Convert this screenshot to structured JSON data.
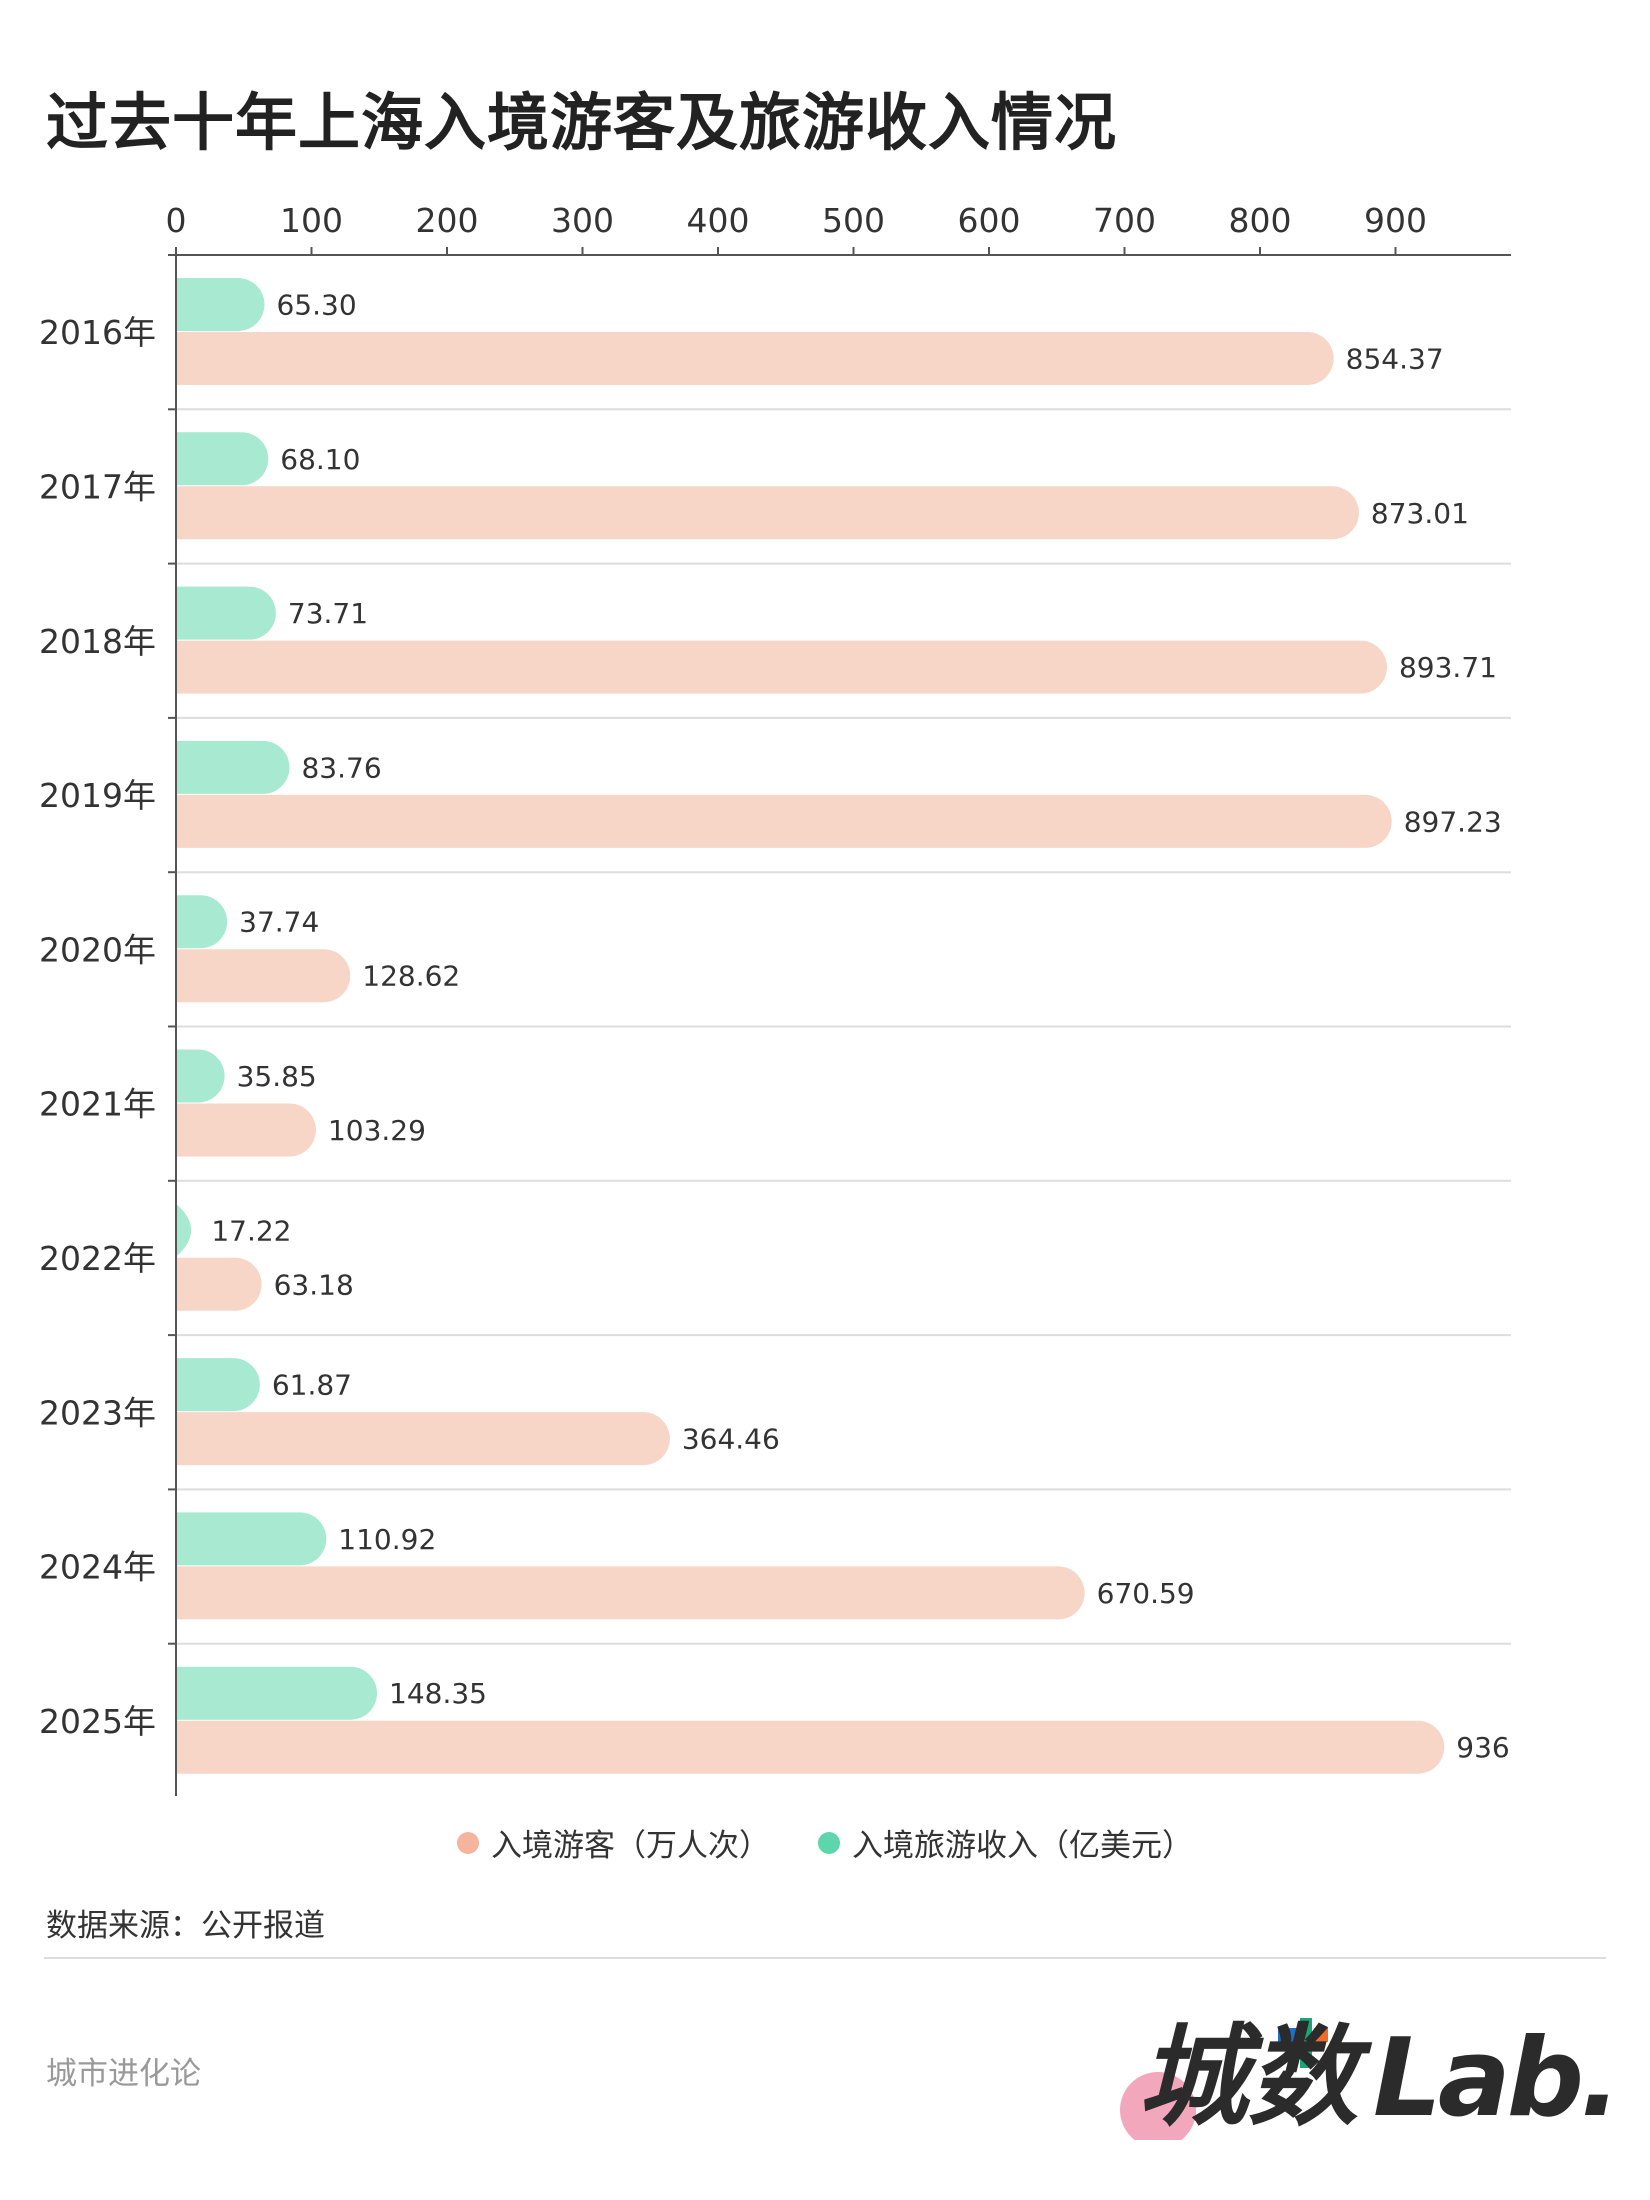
{
  "title": "过去十年上海入境游客及旅游收入情况",
  "chart_data": {
    "type": "bar",
    "orientation": "horizontal",
    "categories": [
      "2016年",
      "2017年",
      "2018年",
      "2019年",
      "2020年",
      "2021年",
      "2022年",
      "2023年",
      "2024年",
      "2025年"
    ],
    "series": [
      {
        "name": "入境旅游收入（亿美元）",
        "color": "#a8e9d2",
        "values": [
          65.3,
          68.1,
          73.71,
          83.76,
          37.74,
          35.85,
          17.22,
          61.87,
          110.92,
          148.35
        ],
        "labels": [
          "65.30",
          "68.10",
          "73.71",
          "83.76",
          "37.74",
          "35.85",
          "17.22",
          "61.87",
          "110.92",
          "148.35"
        ]
      },
      {
        "name": "入境游客（万人次）",
        "color": "#f7d6c8",
        "values": [
          854.37,
          873.01,
          893.71,
          897.23,
          128.62,
          103.29,
          63.18,
          364.46,
          670.59,
          936
        ],
        "labels": [
          "854.37",
          "873.01",
          "893.71",
          "897.23",
          "128.62",
          "103.29",
          "63.18",
          "364.46",
          "670.59",
          "936"
        ]
      }
    ],
    "xticks": [
      "0",
      "100",
      "200",
      "300",
      "400",
      "500",
      "600",
      "700",
      "800",
      "900"
    ],
    "xlim": [
      0,
      980
    ],
    "axis_position": "top",
    "grid": "horizontal separators",
    "legend_position": "bottom"
  },
  "legend": [
    {
      "label": "入境游客（万人次）",
      "color": "#f4b49d"
    },
    {
      "label": "入境旅游收入（亿美元）",
      "color": "#5dd6ab"
    }
  ],
  "source": "数据来源：公开报道",
  "footer": "城市进化论",
  "logo_text": "城数Lab."
}
